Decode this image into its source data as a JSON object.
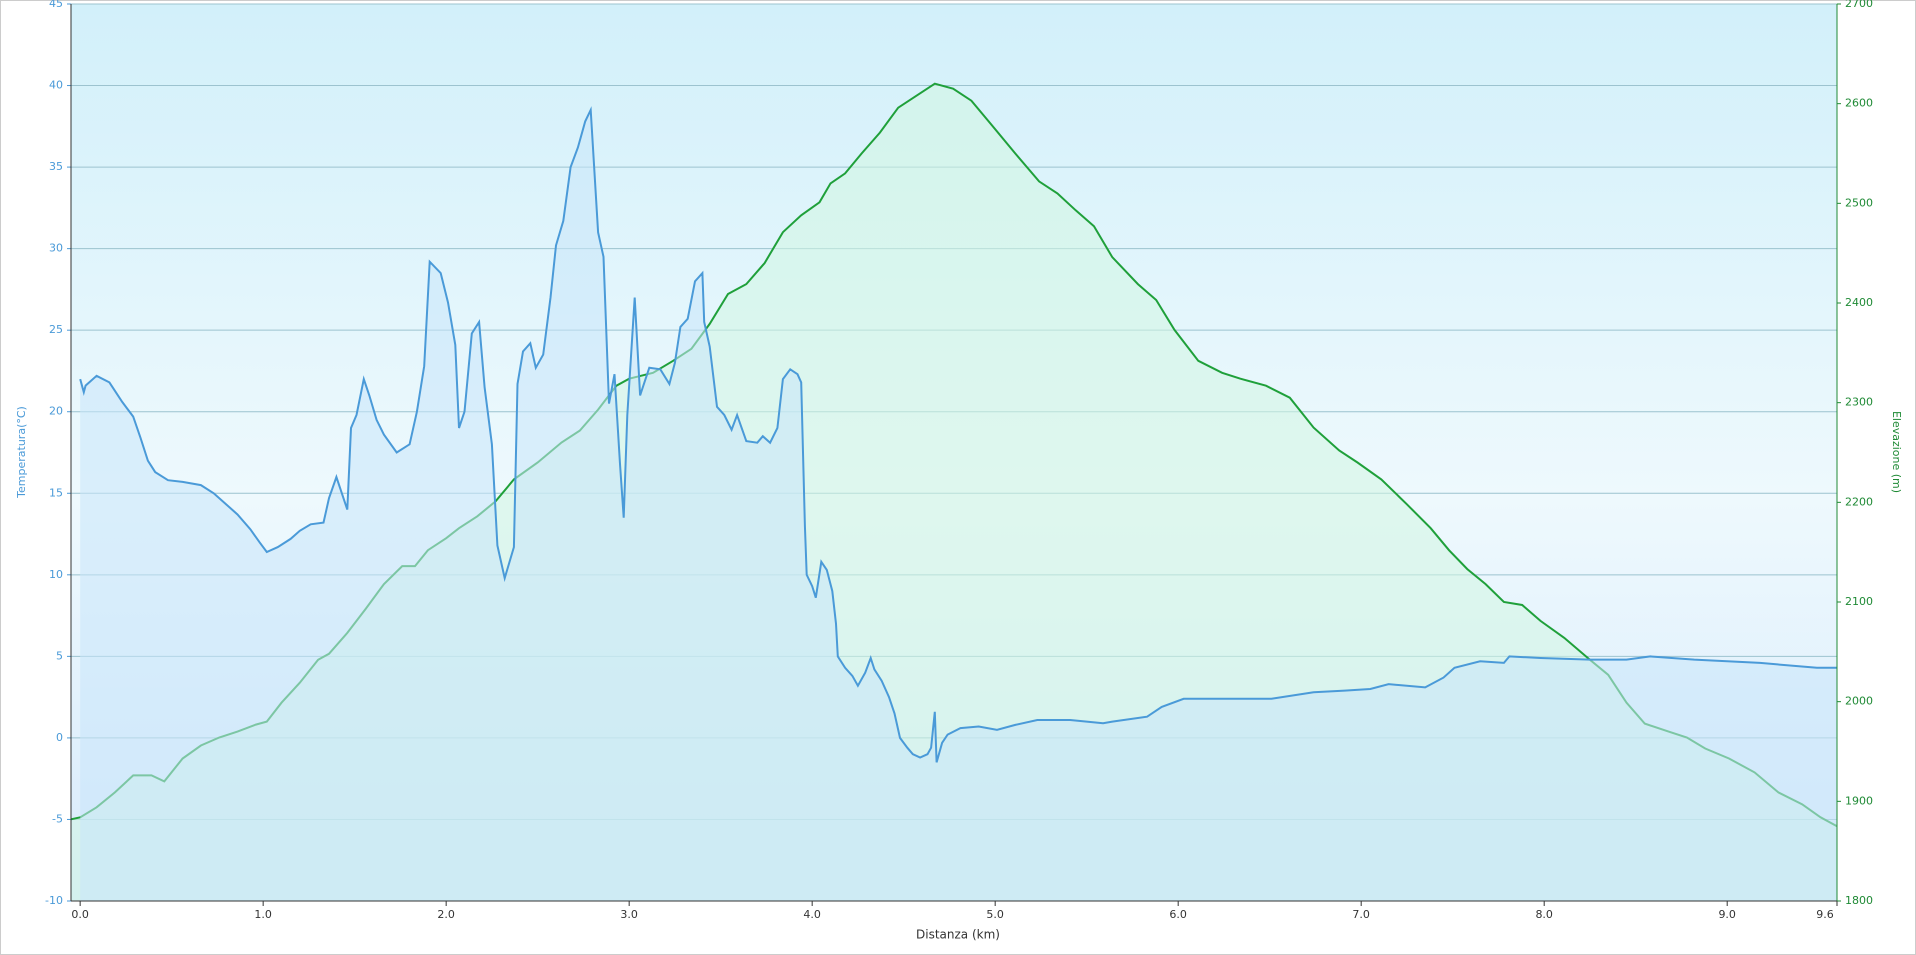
{
  "chart_data": {
    "type": "line",
    "xlabel": "Distanza  (km)",
    "ylabel": "Temperatura(°C)",
    "y2label": "Elevazione (m)",
    "xlim": [
      -0.05,
      9.6
    ],
    "xticks": [
      {
        "value": 0,
        "label": "0.0"
      },
      {
        "value": 1,
        "label": "1.0"
      },
      {
        "value": 2,
        "label": "2.0"
      },
      {
        "value": 3,
        "label": "3.0"
      },
      {
        "value": 4,
        "label": "4.0"
      },
      {
        "value": 5,
        "label": "5.0"
      },
      {
        "value": 6,
        "label": "6.0"
      },
      {
        "value": 7,
        "label": "7.0"
      },
      {
        "value": 8,
        "label": "8.0"
      },
      {
        "value": 9,
        "label": "9.0"
      },
      9.6
    ],
    "ylim": [
      -10,
      45
    ],
    "yticks": [
      -10,
      -5,
      0,
      5,
      10,
      15,
      20,
      25,
      30,
      35,
      40,
      45
    ],
    "y2lim": [
      1800,
      2700
    ],
    "y2ticks": [
      1800,
      1900,
      2000,
      2100,
      2200,
      2300,
      2400,
      2500,
      2600,
      2700
    ],
    "grid": true,
    "series": [
      {
        "color": "#4a9ad8",
        "fill": "#c8e6fa",
        "axis": "y",
        "x": [
          0,
          0.02,
          0.03,
          0.09,
          0.16,
          0.23,
          0.29,
          0.33,
          0.37,
          0.41,
          0.48,
          0.56,
          0.66,
          0.73,
          0.8,
          0.86,
          0.93,
          0.98,
          1.02,
          1.08,
          1.15,
          1.2,
          1.26,
          1.33,
          1.36,
          1.4,
          1.46,
          1.48,
          1.51,
          1.55,
          1.58,
          1.62,
          1.66,
          1.73,
          1.8,
          1.84,
          1.88,
          1.91,
          1.97,
          2.01,
          2.05,
          2.07,
          2.1,
          2.14,
          2.18,
          2.21,
          2.25,
          2.28,
          2.32,
          2.37,
          2.39,
          2.42,
          2.46,
          2.49,
          2.53,
          2.57,
          2.6,
          2.64,
          2.68,
          2.72,
          2.76,
          2.79,
          2.83,
          2.86,
          2.89,
          2.92,
          2.95,
          2.97,
          2.99,
          3.03,
          3.06,
          3.11,
          3.17,
          3.22,
          3.25,
          3.28,
          3.32,
          3.36,
          3.4,
          3.41,
          3.44,
          3.48,
          3.52,
          3.56,
          3.59,
          3.64,
          3.7,
          3.73,
          3.77,
          3.81,
          3.84,
          3.88,
          3.92,
          3.94,
          3.96,
          3.97,
          4.0,
          4.02,
          4.05,
          4.08,
          4.11,
          4.13,
          4.14,
          4.18,
          4.22,
          4.25,
          4.29,
          4.32,
          4.34,
          4.38,
          4.42,
          4.45,
          4.48,
          4.52,
          4.55,
          4.59,
          4.63,
          4.65,
          4.67,
          4.68,
          4.71,
          4.74,
          4.81,
          4.91,
          5.01,
          5.11,
          5.23,
          5.41,
          5.59,
          5.64,
          5.83,
          5.91,
          6.03,
          6.24,
          6.51,
          6.74,
          6.91,
          7.05,
          7.15,
          7.35,
          7.45,
          7.51,
          7.65,
          7.78,
          7.81,
          7.98,
          8.25,
          8.45,
          8.58,
          8.82,
          9.18,
          9.49,
          9.6
        ],
        "values": [
          22,
          21.2,
          21.6,
          22.2,
          21.8,
          20.6,
          19.7,
          18.4,
          17,
          16.3,
          15.8,
          15.7,
          15.5,
          15,
          14.3,
          13.7,
          12.8,
          12,
          11.4,
          11.7,
          12.2,
          12.7,
          13.1,
          13.2,
          14.7,
          16,
          14,
          19,
          19.8,
          22,
          21,
          19.5,
          18.6,
          17.5,
          18,
          20,
          22.8,
          29.2,
          28.5,
          26.7,
          24.1,
          19,
          20,
          24.8,
          25.5,
          21.5,
          18,
          11.8,
          9.8,
          11.7,
          21.7,
          23.7,
          24.2,
          22.7,
          23.5,
          27,
          30.2,
          31.7,
          35,
          36.2,
          37.8,
          38.5,
          31,
          29.5,
          20.5,
          22.3,
          16.8,
          13.5,
          19.8,
          27,
          21,
          22.7,
          22.6,
          21.7,
          23,
          25.2,
          25.7,
          28,
          28.5,
          25.5,
          24,
          20.3,
          19.8,
          18.9,
          19.8,
          18.2,
          18.1,
          18.5,
          18.1,
          19,
          22,
          22.6,
          22.3,
          21.8,
          13,
          10,
          9.3,
          8.6,
          10.8,
          10.3,
          9,
          7,
          5,
          4.3,
          3.8,
          3.2,
          4,
          4.9,
          4.2,
          3.5,
          2.5,
          1.5,
          0,
          -0.6,
          -1,
          -1.2,
          -1,
          -0.6,
          1.6,
          -1.5,
          -0.3,
          0.2,
          0.6,
          0.7,
          0.5,
          0.8,
          1.1,
          1.1,
          0.9,
          1,
          1.3,
          1.9,
          2.4,
          2.4,
          2.4,
          2.8,
          2.9,
          3,
          3.3,
          3.1,
          3.7,
          4.3,
          4.7,
          4.6,
          5,
          4.9,
          4.8,
          4.8,
          5,
          4.8,
          4.6,
          4.3,
          4.3
        ]
      },
      {
        "color": "#1fa03a",
        "fill": "#d2f5e2",
        "axis": "y2",
        "x": [
          -0.05,
          0,
          0.09,
          0.19,
          0.29,
          0.39,
          0.46,
          0.56,
          0.66,
          0.76,
          0.86,
          0.96,
          1.02,
          1.1,
          1.2,
          1.3,
          1.36,
          1.46,
          1.56,
          1.66,
          1.76,
          1.83,
          1.9,
          2.0,
          2.07,
          2.17,
          2.27,
          2.37,
          2.5,
          2.63,
          2.73,
          2.83,
          2.93,
          3.0,
          3.13,
          3.24,
          3.34,
          3.44,
          3.54,
          3.64,
          3.74,
          3.84,
          3.94,
          4.04,
          4.1,
          4.18,
          4.27,
          4.37,
          4.47,
          4.57,
          4.67,
          4.77,
          4.87,
          4.97,
          5.11,
          5.24,
          5.34,
          5.44,
          5.54,
          5.64,
          5.78,
          5.88,
          5.98,
          6.11,
          6.24,
          6.34,
          6.48,
          6.61,
          6.74,
          6.88,
          6.98,
          7.11,
          7.25,
          7.38,
          7.48,
          7.58,
          7.68,
          7.78,
          7.88,
          7.98,
          8.11,
          8.25,
          8.35,
          8.45,
          8.55,
          8.68,
          8.78,
          8.88,
          9.01,
          9.15,
          9.28,
          9.41,
          9.51,
          9.6
        ],
        "values": [
          1882,
          1884,
          1894,
          1909,
          1926,
          1926,
          1920,
          1943,
          1956,
          1964,
          1970,
          1977,
          1980,
          1999,
          2019,
          2042,
          2048,
          2069,
          2093,
          2118,
          2136,
          2136,
          2152,
          2164,
          2174,
          2186,
          2201,
          2223,
          2240,
          2260,
          2272,
          2293,
          2317,
          2324,
          2330,
          2342,
          2354,
          2379,
          2409,
          2419,
          2440,
          2471,
          2488,
          2501,
          2520,
          2530,
          2550,
          2571,
          2596,
          2608,
          2620,
          2615,
          2603,
          2581,
          2550,
          2522,
          2510,
          2493,
          2477,
          2446,
          2419,
          2403,
          2373,
          2342,
          2330,
          2324,
          2317,
          2305,
          2275,
          2252,
          2240,
          2223,
          2198,
          2174,
          2152,
          2133,
          2118,
          2100,
          2097,
          2081,
          2064,
          2042,
          2027,
          1999,
          1978,
          1970,
          1964,
          1953,
          1943,
          1929,
          1909,
          1897,
          1884,
          1875
        ]
      }
    ]
  }
}
